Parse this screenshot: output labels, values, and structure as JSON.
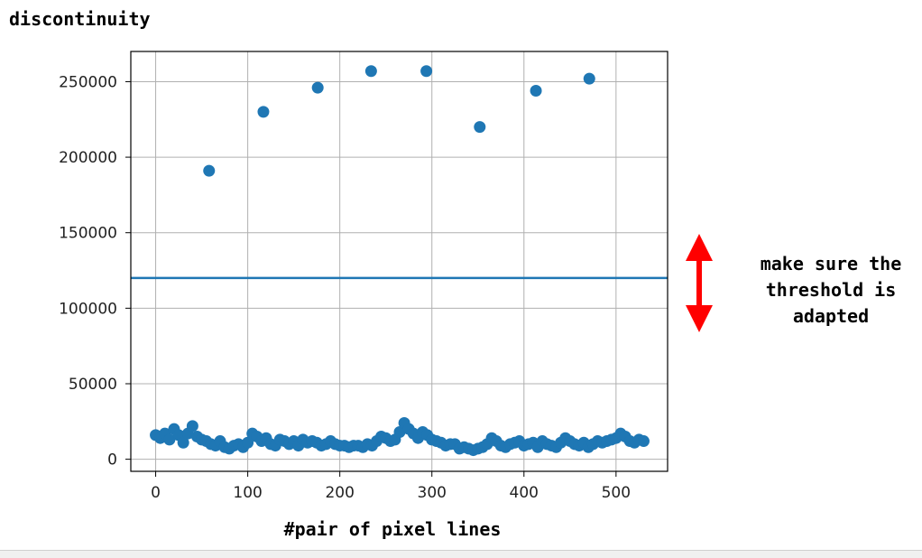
{
  "chart_data": {
    "type": "scatter",
    "title": "",
    "ylabel": "discontinuity",
    "xlabel": "#pair of pixel lines",
    "xlim": [
      -27,
      556
    ],
    "ylim": [
      -8000,
      270000
    ],
    "xticks": [
      0,
      100,
      200,
      300,
      400,
      500
    ],
    "yticks": [
      0,
      50000,
      100000,
      150000,
      200000,
      250000
    ],
    "grid": true,
    "point_color": "#1f77b4",
    "threshold": {
      "y": 120000,
      "color": "#1f77b4"
    },
    "outliers": [
      {
        "x": 58,
        "y": 191000
      },
      {
        "x": 117,
        "y": 230000
      },
      {
        "x": 176,
        "y": 246000
      },
      {
        "x": 234,
        "y": 257000
      },
      {
        "x": 294,
        "y": 257000
      },
      {
        "x": 352,
        "y": 220000
      },
      {
        "x": 413,
        "y": 244000
      },
      {
        "x": 471,
        "y": 252000
      }
    ],
    "baseline": {
      "x_range": [
        0,
        530
      ],
      "values_sampled_every_5": [
        16000,
        14000,
        17000,
        13000,
        20000,
        16000,
        11000,
        17000,
        22000,
        15000,
        13000,
        12000,
        10000,
        9000,
        12000,
        8000,
        7000,
        9000,
        10000,
        8000,
        11000,
        17000,
        15000,
        12000,
        14000,
        10000,
        9000,
        13000,
        12000,
        10000,
        12000,
        9000,
        13000,
        11000,
        12000,
        11000,
        9000,
        10000,
        12000,
        10000,
        9000,
        9000,
        8000,
        9000,
        9000,
        8000,
        10000,
        9000,
        12000,
        15000,
        14000,
        12000,
        13000,
        18000,
        24000,
        20000,
        17000,
        14000,
        18000,
        16000,
        13000,
        12000,
        11000,
        9000,
        10000,
        10000,
        7000,
        8000,
        7000,
        6000,
        7000,
        8000,
        10000,
        14000,
        12000,
        9000,
        8000,
        10000,
        11000,
        12000,
        9000,
        10000,
        11000,
        8000,
        12000,
        10000,
        9000,
        8000,
        11000,
        14000,
        12000,
        10000,
        9000,
        11000,
        8000,
        10000,
        12000,
        11000,
        12000,
        13000,
        14000,
        17000,
        15000,
        12000,
        11000,
        13000,
        12000
      ]
    }
  },
  "annotation": {
    "lines": [
      "make sure the",
      "threshold is",
      "adapted"
    ],
    "arrow_color": "#ff0000"
  }
}
